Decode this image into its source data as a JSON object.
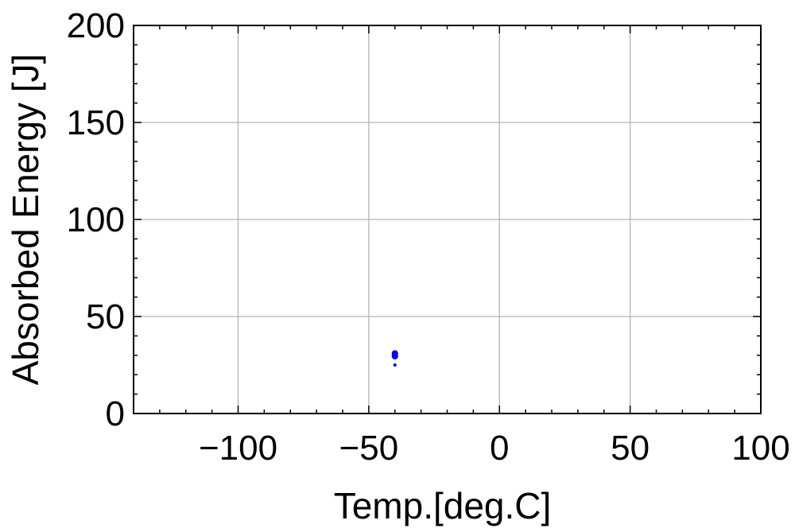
{
  "chart_data": {
    "type": "scatter",
    "xlabel": "Temp.[deg.C]",
    "ylabel": "Absorbed Energy [J]",
    "xlim": [
      -140,
      100
    ],
    "ylim": [
      0,
      200
    ],
    "x_ticks": [
      -100,
      -50,
      0,
      50,
      100
    ],
    "y_ticks": [
      0,
      50,
      100,
      150,
      200
    ],
    "x_tick_labels": [
      "−100",
      "−50",
      "0",
      "50",
      "100"
    ],
    "y_tick_labels": [
      "0",
      "50",
      "100",
      "150",
      "200"
    ],
    "grid": true,
    "series": [
      {
        "color": "#0000ff",
        "points": [
          {
            "x": -40,
            "y": 31
          },
          {
            "x": -40,
            "y": 30
          },
          {
            "x": -40,
            "y": 29.5
          },
          {
            "x": -40,
            "y": 25
          }
        ]
      }
    ]
  }
}
